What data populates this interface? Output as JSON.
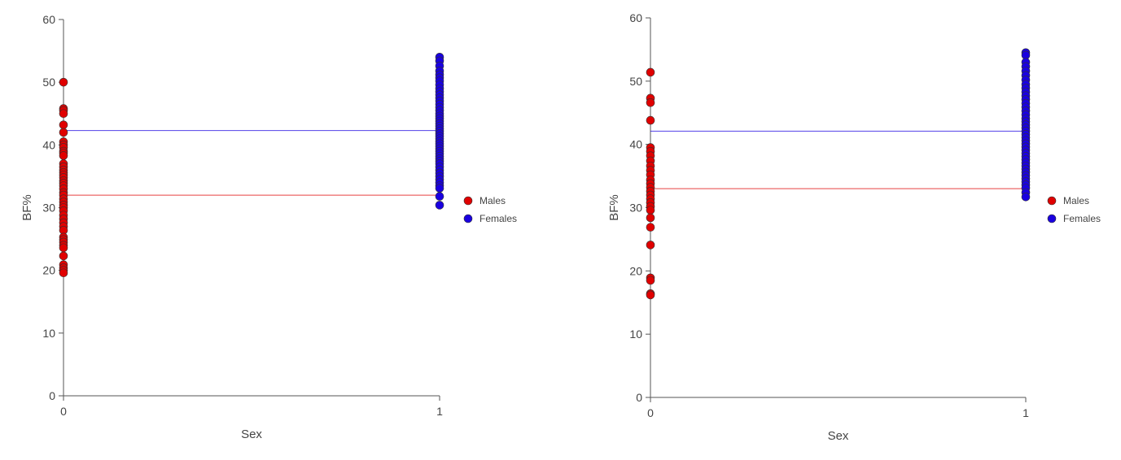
{
  "chart_data": [
    {
      "type": "scatter",
      "title": "",
      "xlabel": "Sex",
      "ylabel": "BF%",
      "xlim": [
        0,
        1
      ],
      "ylim": [
        0,
        60
      ],
      "xticks": [
        0,
        1
      ],
      "yticks": [
        0,
        10,
        20,
        30,
        40,
        50,
        60
      ],
      "grid": false,
      "legend_position": "right",
      "series": [
        {
          "name": "Males",
          "color": "#e00000",
          "x": 0,
          "values": [
            50.0,
            45.8,
            45.5,
            45.0,
            43.2,
            42.0,
            40.5,
            40.0,
            39.6,
            39.0,
            38.7,
            38.3,
            37.0,
            36.5,
            36.0,
            35.6,
            35.2,
            34.8,
            34.3,
            33.9,
            33.5,
            33.0,
            32.4,
            32.0,
            31.4,
            30.9,
            30.4,
            30.0,
            29.5,
            28.8,
            28.2,
            27.6,
            27.0,
            26.4,
            25.3,
            24.9,
            24.5,
            24.0,
            23.6,
            22.3,
            20.9,
            20.4,
            20.0,
            19.6
          ],
          "mean": 32.0
        },
        {
          "name": "Females",
          "color": "#1a00e0",
          "x": 1,
          "values": [
            54.0,
            53.4,
            52.6,
            51.8,
            51.2,
            50.7,
            50.2,
            49.6,
            49.0,
            48.5,
            48.0,
            47.5,
            47.0,
            46.5,
            46.0,
            45.5,
            45.0,
            44.6,
            44.2,
            43.8,
            43.4,
            43.0,
            42.6,
            42.2,
            41.8,
            41.4,
            41.0,
            40.6,
            40.2,
            39.8,
            39.4,
            39.0,
            38.6,
            38.2,
            37.8,
            37.4,
            37.0,
            36.5,
            36.0,
            35.5,
            35.0,
            34.5,
            34.0,
            33.5,
            33.1,
            31.8,
            30.4
          ],
          "mean": 42.3
        }
      ]
    },
    {
      "type": "scatter",
      "title": "",
      "xlabel": "Sex",
      "ylabel": "BF%",
      "xlim": [
        0,
        1
      ],
      "ylim": [
        0,
        60
      ],
      "xticks": [
        0,
        1
      ],
      "yticks": [
        0,
        10,
        20,
        30,
        40,
        50,
        60
      ],
      "grid": false,
      "legend_position": "right",
      "series": [
        {
          "name": "Males",
          "color": "#e00000",
          "x": 0,
          "values": [
            51.4,
            47.3,
            46.6,
            43.8,
            39.5,
            38.9,
            38.2,
            37.4,
            36.6,
            35.9,
            35.2,
            34.4,
            33.8,
            33.2,
            32.6,
            32.0,
            31.4,
            30.8,
            30.2,
            29.6,
            28.4,
            26.9,
            24.1,
            18.9,
            18.5,
            16.4,
            16.2
          ],
          "mean": 33.0
        },
        {
          "name": "Females",
          "color": "#1a00e0",
          "x": 1,
          "values": [
            54.5,
            54.1,
            53.0,
            52.3,
            51.6,
            50.9,
            50.2,
            49.5,
            48.9,
            48.3,
            47.7,
            47.1,
            46.5,
            45.9,
            45.3,
            44.7,
            44.1,
            43.6,
            43.1,
            42.6,
            42.1,
            41.6,
            41.1,
            40.6,
            40.1,
            39.6,
            39.1,
            38.6,
            38.1,
            37.6,
            37.1,
            36.6,
            36.1,
            35.6,
            35.1,
            34.6,
            34.1,
            33.6,
            33.1,
            32.4,
            31.7
          ],
          "mean": 42.1
        }
      ]
    }
  ]
}
